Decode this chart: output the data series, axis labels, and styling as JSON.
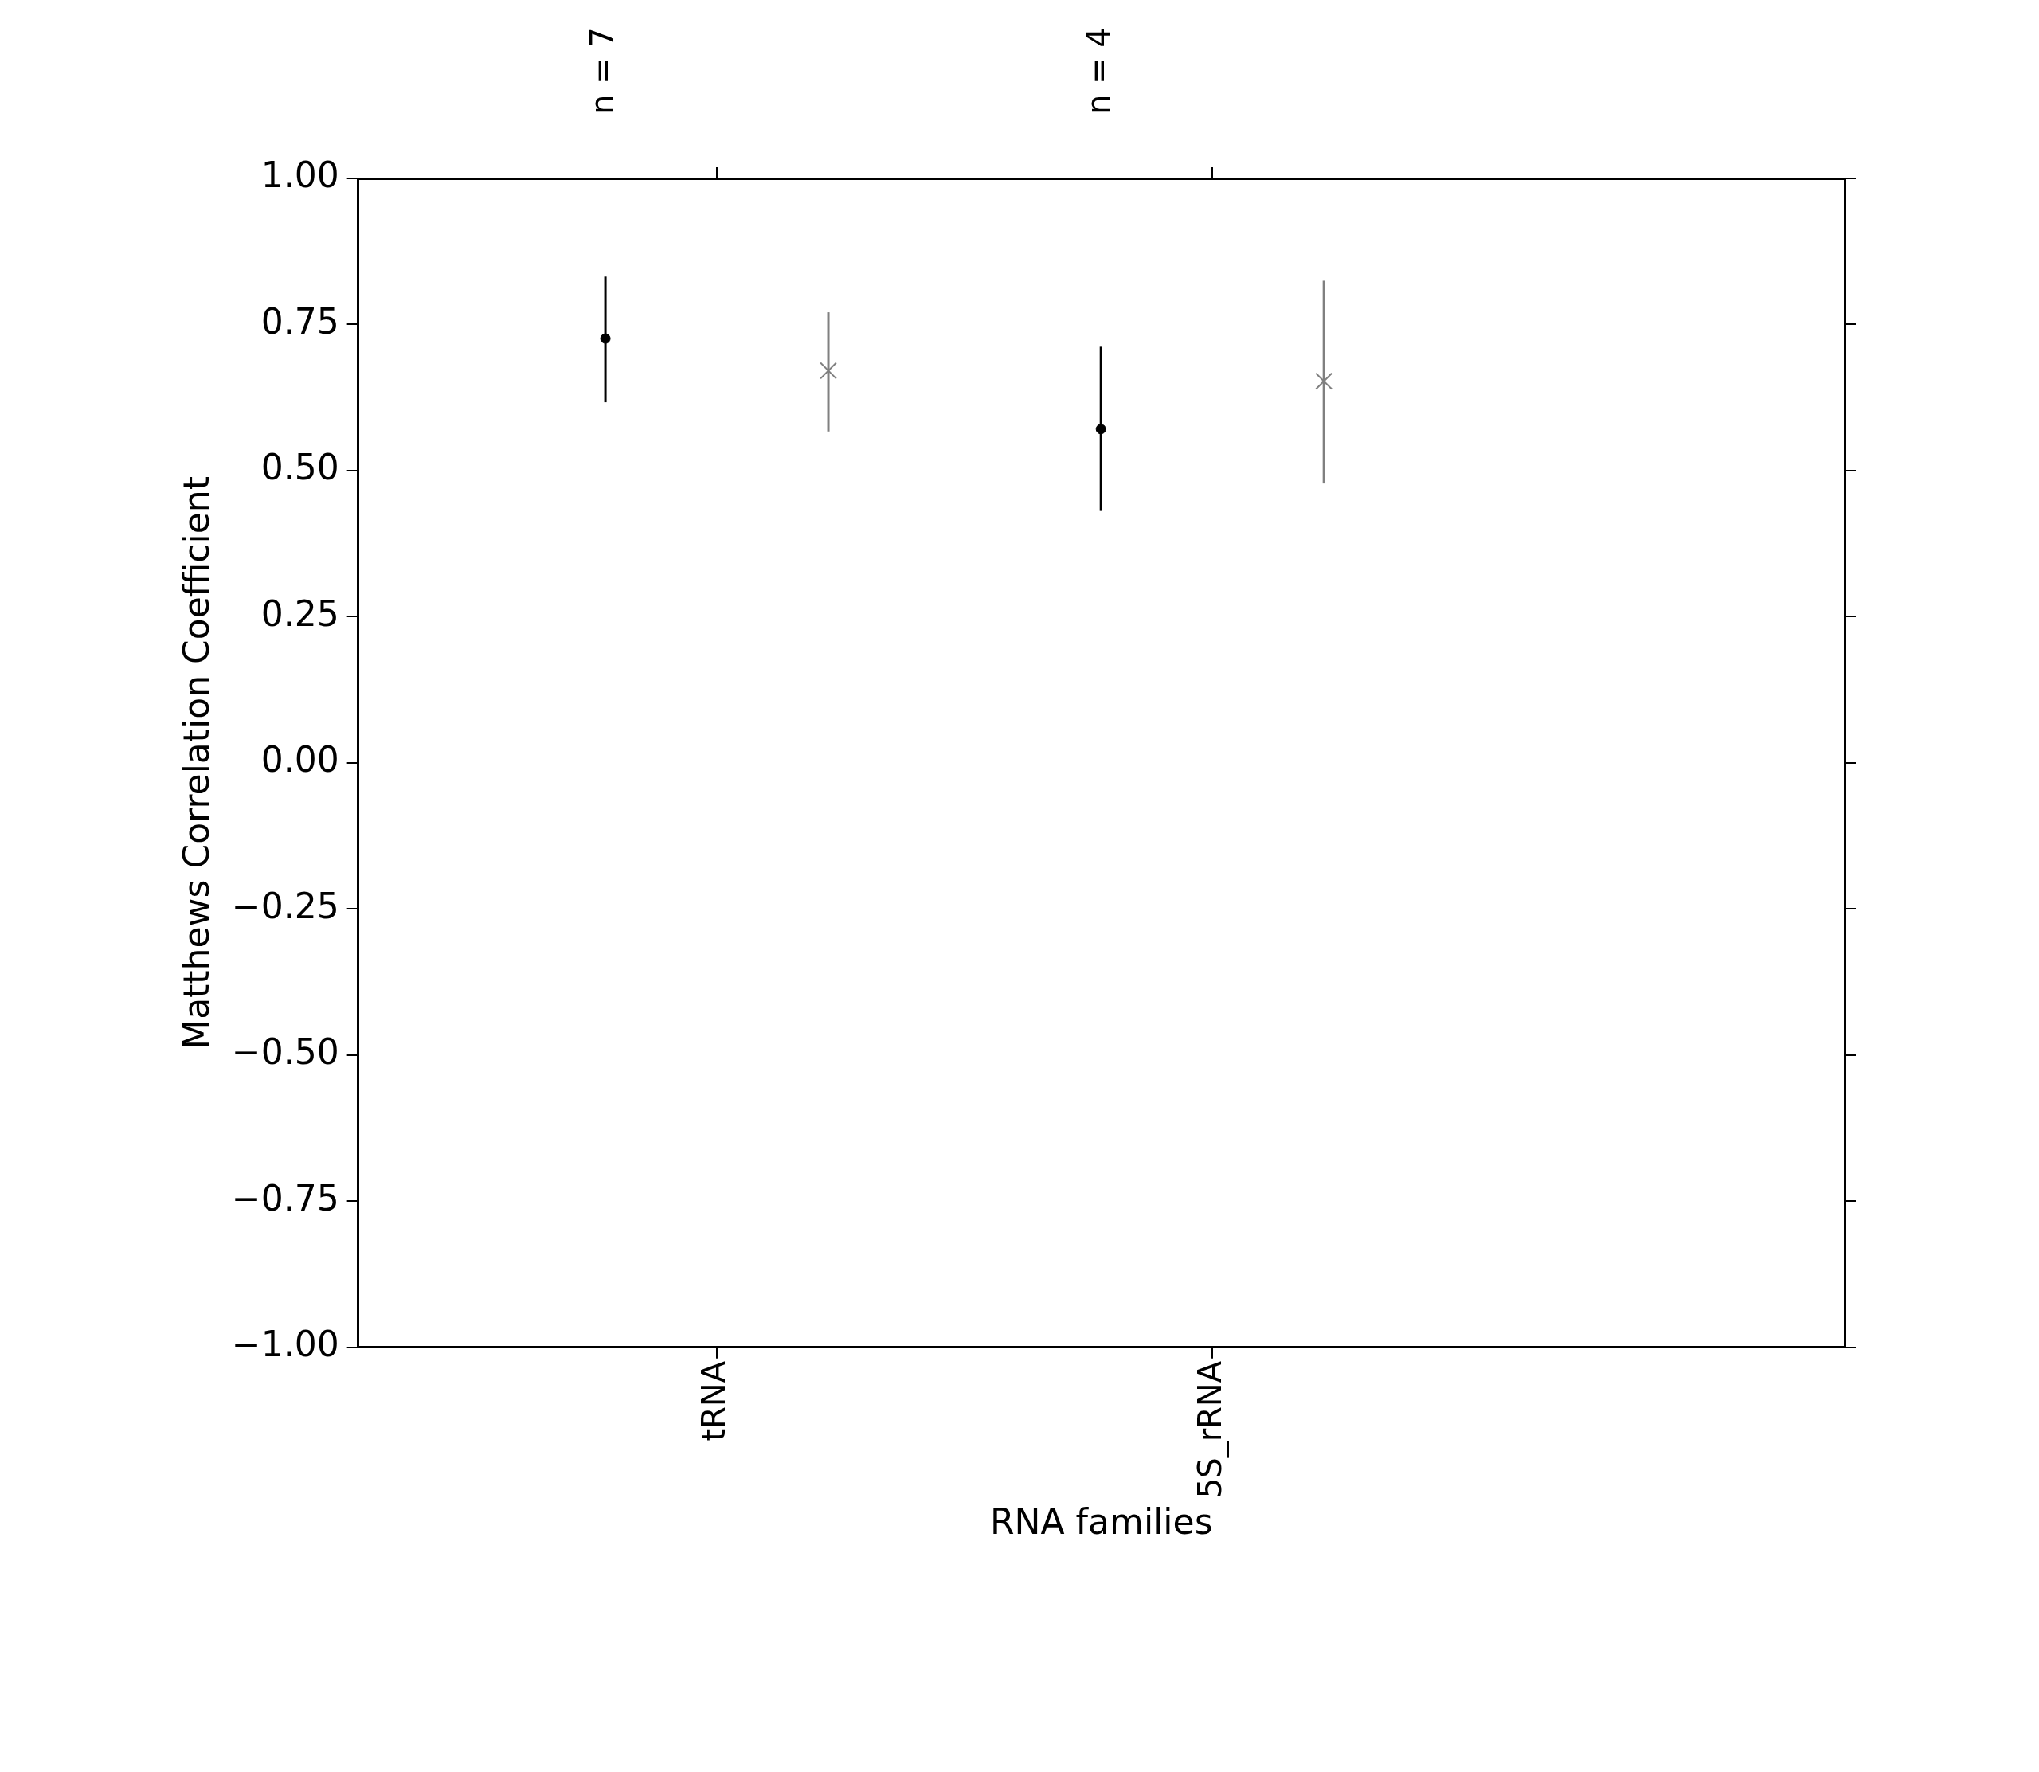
{
  "chart_data": {
    "type": "scatter",
    "xlabel": "RNA families",
    "ylabel": "Matthews Correlation Coefficient",
    "categories": [
      "tRNA",
      "5S_rRNA"
    ],
    "annotations": [
      "n = 7",
      "n = 4"
    ],
    "ylim": [
      -1,
      1
    ],
    "yticks": [
      {
        "value": -1,
        "label": "−1.00"
      },
      {
        "value": -0.75,
        "label": "−0.75"
      },
      {
        "value": -0.5,
        "label": "−0.50"
      },
      {
        "value": -0.25,
        "label": "−0.25"
      },
      {
        "value": 0,
        "label": "0.00"
      },
      {
        "value": 0.25,
        "label": "0.25"
      },
      {
        "value": 0.5,
        "label": "0.50"
      },
      {
        "value": 0.75,
        "label": "0.75"
      },
      {
        "value": 1,
        "label": "1.00"
      }
    ],
    "grid": false,
    "series": [
      {
        "color": "#000000",
        "marker": "circle",
        "values": [
          0.726,
          0.571
        ],
        "errors": [
          [
            0.617,
            0.832
          ],
          [
            0.431,
            0.712
          ]
        ]
      },
      {
        "color": "#808080",
        "marker": "cross",
        "values": [
          0.671,
          0.653
        ],
        "errors": [
          [
            0.567,
            0.771
          ],
          [
            0.478,
            0.825
          ]
        ]
      }
    ]
  }
}
